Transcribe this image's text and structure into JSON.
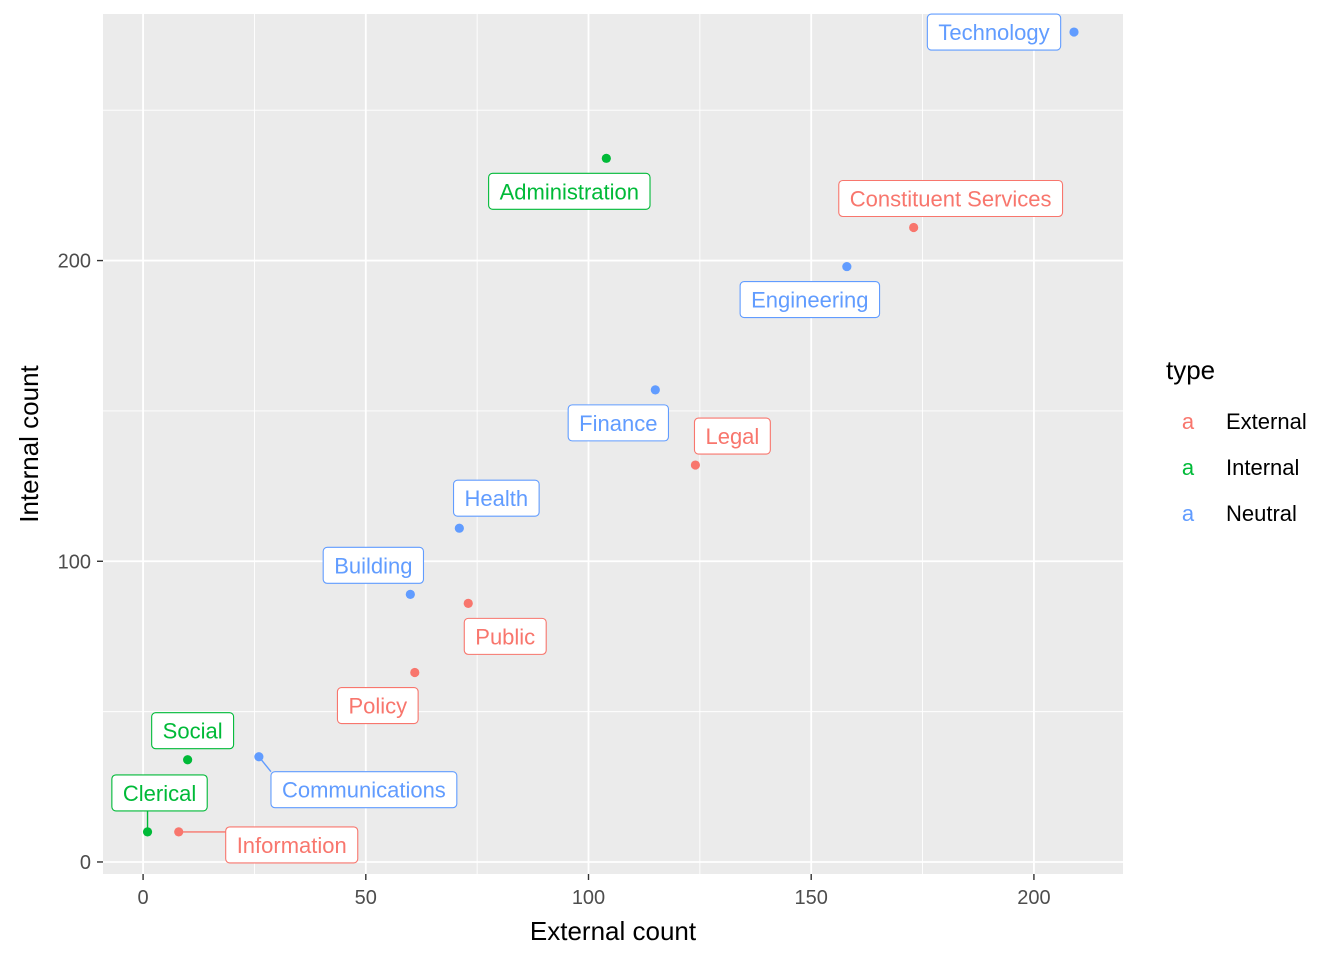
{
  "chart_data": {
    "type": "scatter",
    "title": "",
    "xlabel": "External count",
    "ylabel": "Internal count",
    "xlim": [
      -9,
      220
    ],
    "ylim": [
      -4,
      282
    ],
    "x_ticks": [
      0,
      50,
      100,
      150,
      200
    ],
    "y_ticks": [
      0,
      100,
      200
    ],
    "grid": true,
    "legend": {
      "title": "type",
      "placement": "right",
      "key_glyph": "a",
      "entries": [
        {
          "name": "External",
          "color": "#F8766D"
        },
        {
          "name": "Internal",
          "color": "#00BA38"
        },
        {
          "name": "Neutral",
          "color": "#619CFF"
        }
      ]
    },
    "series": [
      {
        "name": "External",
        "color": "#F8766D",
        "points": [
          {
            "label": "Constituent Services",
            "x": 173,
            "y": 211
          },
          {
            "label": "Legal",
            "x": 124,
            "y": 132
          },
          {
            "label": "Public",
            "x": 73,
            "y": 86
          },
          {
            "label": "Policy",
            "x": 61,
            "y": 63
          },
          {
            "label": "Information",
            "x": 8,
            "y": 10
          }
        ]
      },
      {
        "name": "Internal",
        "color": "#00BA38",
        "points": [
          {
            "label": "Administration",
            "x": 104,
            "y": 234
          },
          {
            "label": "Social",
            "x": 10,
            "y": 34
          },
          {
            "label": "Clerical",
            "x": 1,
            "y": 10
          }
        ]
      },
      {
        "name": "Neutral",
        "color": "#619CFF",
        "points": [
          {
            "label": "Technology",
            "x": 209,
            "y": 276
          },
          {
            "label": "Engineering",
            "x": 158,
            "y": 198
          },
          {
            "label": "Finance",
            "x": 115,
            "y": 157
          },
          {
            "label": "Health",
            "x": 71,
            "y": 111
          },
          {
            "label": "Building",
            "x": 60,
            "y": 89
          },
          {
            "label": "Communications",
            "x": 26,
            "y": 35
          }
        ]
      }
    ]
  }
}
